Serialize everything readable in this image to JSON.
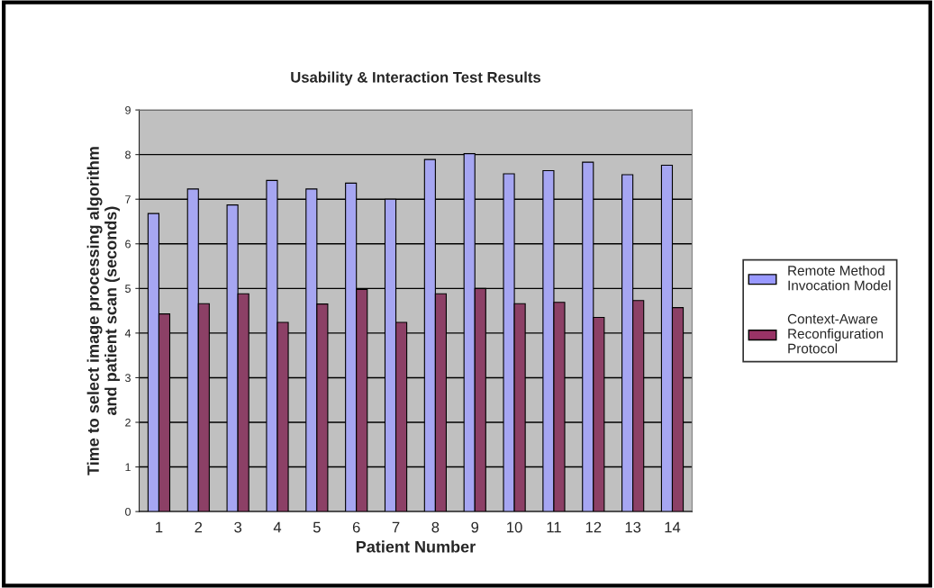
{
  "chart_data": {
    "type": "bar",
    "title": "Usability & Interaction Test Results",
    "xlabel": "Patient Number",
    "ylabel": "Time to select image processing algorithm\nand patient scan (seconds)",
    "categories": [
      "1",
      "2",
      "3",
      "4",
      "5",
      "6",
      "7",
      "8",
      "9",
      "10",
      "11",
      "12",
      "13",
      "14"
    ],
    "series": [
      {
        "name": "Remote Method\nInvocation Model",
        "color": "#9999ff",
        "values": [
          6.68,
          7.23,
          6.87,
          7.42,
          7.23,
          7.36,
          7.0,
          7.89,
          8.02,
          7.57,
          7.64,
          7.83,
          7.55,
          7.76
        ]
      },
      {
        "name": "Context-Aware\nReconfiguration\nProtocol",
        "color": "#993366",
        "values": [
          4.43,
          4.66,
          4.88,
          4.24,
          4.65,
          4.98,
          4.24,
          4.88,
          5.0,
          4.66,
          4.69,
          4.35,
          4.73,
          4.57
        ]
      }
    ],
    "ylim": [
      0,
      9
    ],
    "yticks": [
      0,
      1,
      2,
      3,
      4,
      5,
      6,
      7,
      8,
      9
    ],
    "grid": "y",
    "legend": "right"
  }
}
